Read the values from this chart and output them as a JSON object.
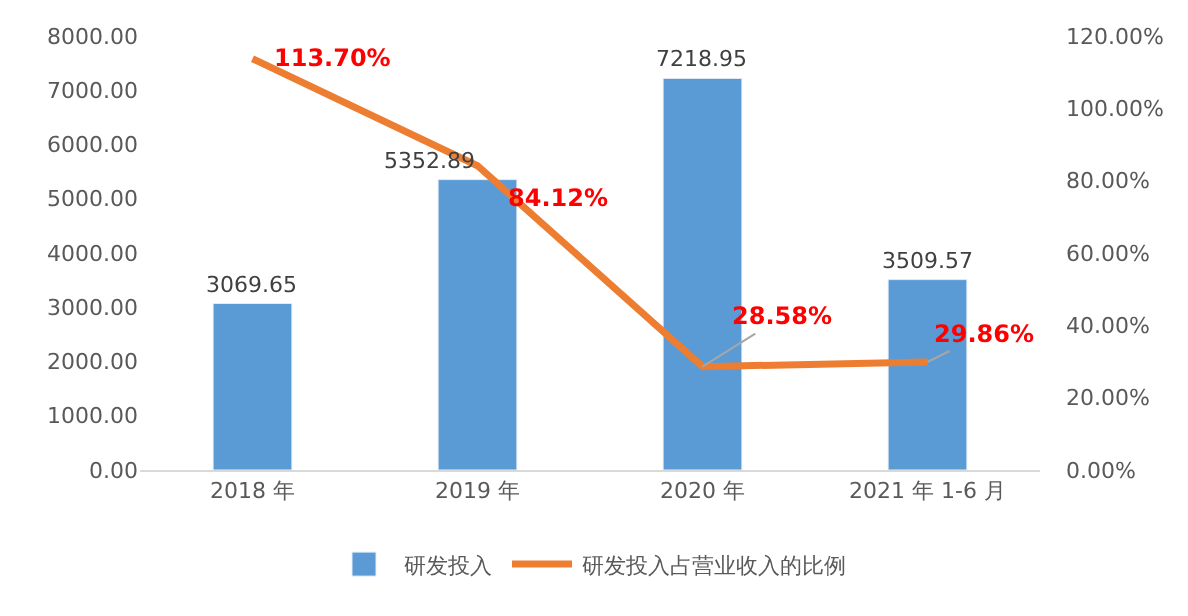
{
  "chart_data": {
    "type": "bar",
    "categories": [
      "2018 年",
      "2019 年",
      "2020 年",
      "2021 年 1-6 月"
    ],
    "series": [
      {
        "name": "研发投入",
        "color": "#5b9bd5",
        "values": [
          3069.65,
          5352.89,
          7218.95,
          3509.57
        ],
        "value_labels": [
          "3069.65",
          "5352.89",
          "7218.95",
          "3509.57"
        ]
      },
      {
        "name": "研发投入占营业收入的比例",
        "type": "line",
        "axis": "y2",
        "color": "#ed7d31",
        "values": [
          113.7,
          84.12,
          28.58,
          29.86
        ],
        "value_labels": [
          "113.70%",
          "84.12%",
          "28.58%",
          "29.86%"
        ]
      }
    ],
    "ylim": [
      0,
      8000
    ],
    "yticks": [
      {
        "value": 0,
        "label": "0.00"
      },
      {
        "value": 1000,
        "label": "1000.00"
      },
      {
        "value": 2000,
        "label": "2000.00"
      },
      {
        "value": 3000,
        "label": "3000.00"
      },
      {
        "value": 4000,
        "label": "4000.00"
      },
      {
        "value": 5000,
        "label": "5000.00"
      },
      {
        "value": 6000,
        "label": "6000.00"
      },
      {
        "value": 7000,
        "label": "7000.00"
      },
      {
        "value": 8000,
        "label": "8000.00"
      }
    ],
    "y2lim": [
      0,
      120
    ],
    "y2ticks": [
      {
        "value": 0,
        "label": "0.00%"
      },
      {
        "value": 20,
        "label": "20.00%"
      },
      {
        "value": 40,
        "label": "40.00%"
      },
      {
        "value": 60,
        "label": "60.00%"
      },
      {
        "value": 80,
        "label": "80.00%"
      },
      {
        "value": 100,
        "label": "100.00%"
      },
      {
        "value": 120,
        "label": "120.00%"
      }
    ],
    "grid": false,
    "legend": "bottom",
    "marker": "none",
    "line_style": "solid"
  }
}
